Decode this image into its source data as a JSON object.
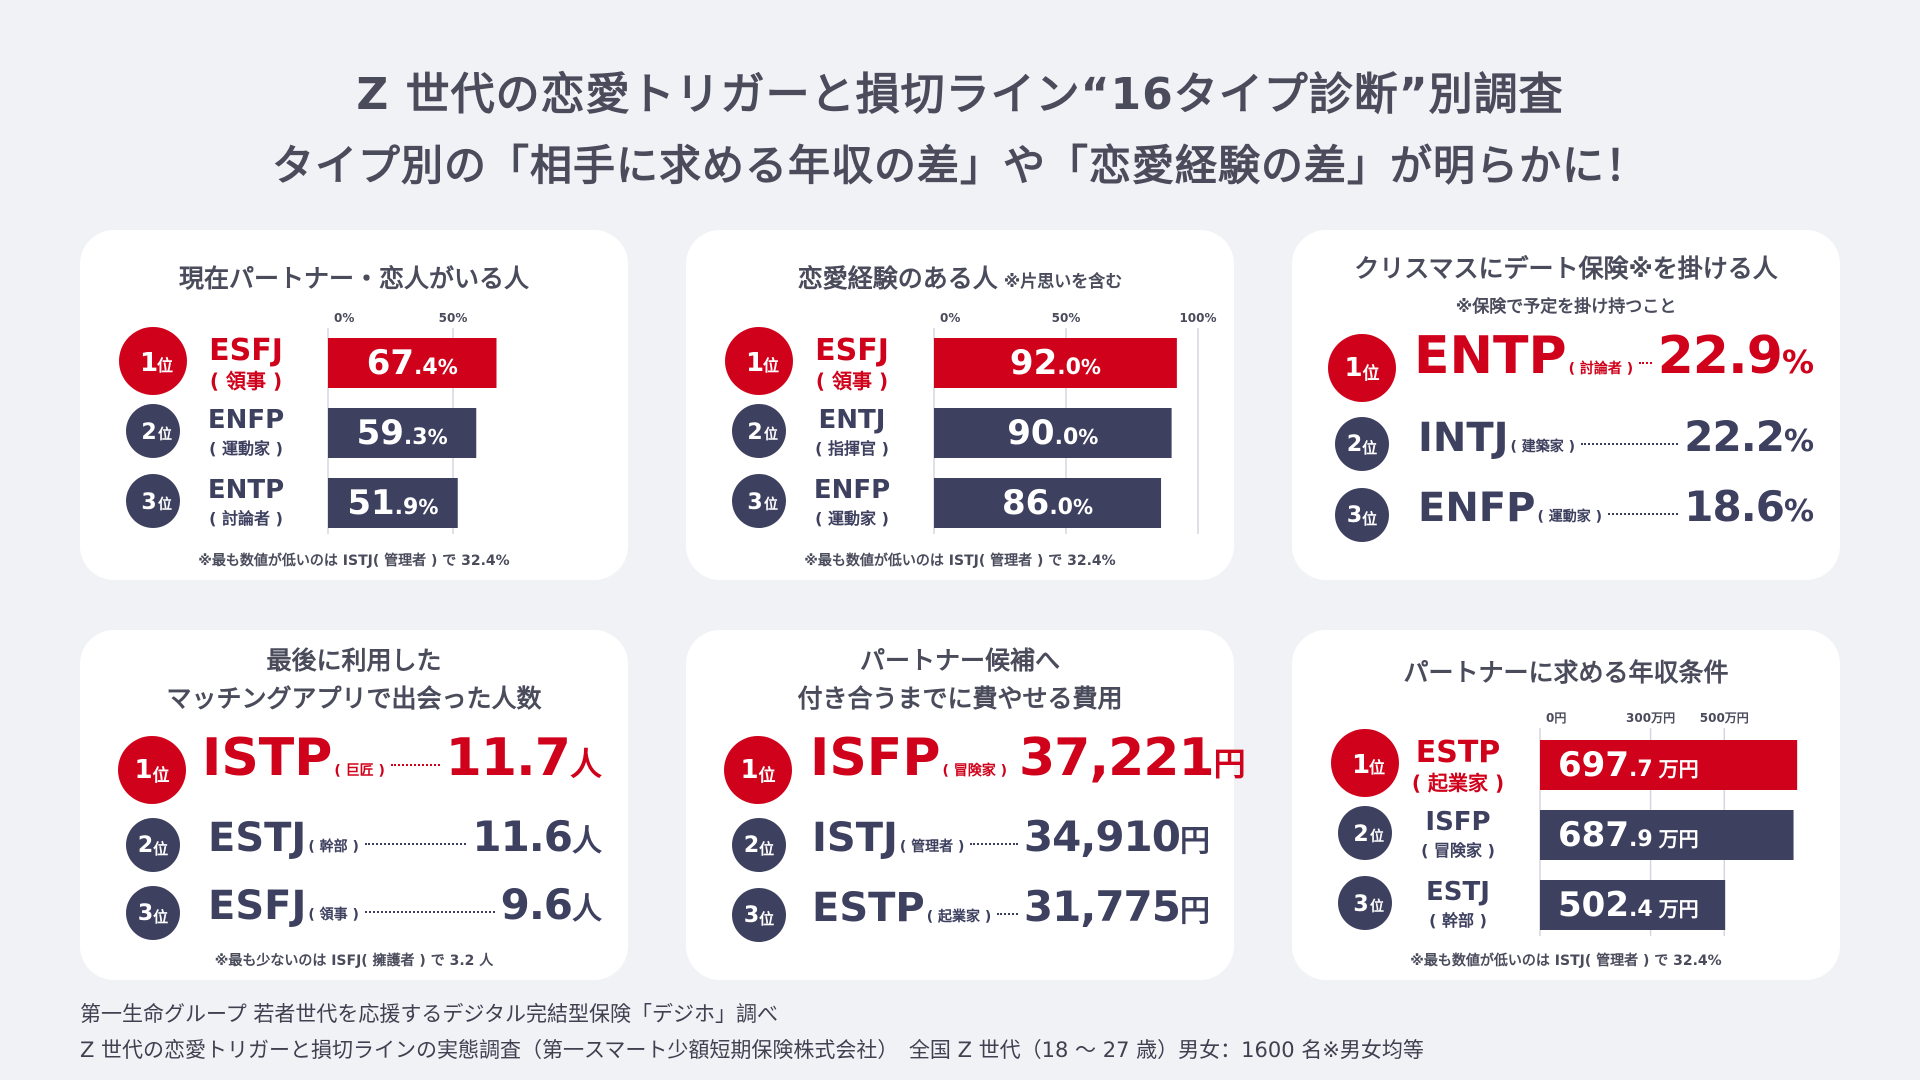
{
  "header": {
    "line1": "Z 世代の恋愛トリガーと損切ライン“16タイプ診断”別調査",
    "line2": "タイプ別の「相手に求める年収の差」や「恋愛経験の差」が明らかに！"
  },
  "rank_unit": "位",
  "colors": {
    "red": "#d0021b",
    "navy": "#3e4060",
    "bg": "#f1f2f6",
    "axis": "#d5d6de"
  },
  "cards": {
    "partner": {
      "title": "現在パートナー・恋人がいる人",
      "note": "※最も数値が低いのは ISTJ( 管理者 ) で 32.4%"
    },
    "experience": {
      "title": "恋愛経験のある人",
      "sub": "※片思いを含む",
      "note": "※最も数値が低いのは ISTJ( 管理者 ) で 32.4%"
    },
    "xmas": {
      "title": "クリスマスにデート保険※を掛ける人",
      "sub": "※保険で予定を掛け持つこと",
      "rows": [
        {
          "rank": "1",
          "code": "ENTP",
          "nick": "( 討論者 )",
          "val": "22.9",
          "unit": "%"
        },
        {
          "rank": "2",
          "code": "INTJ",
          "nick": "( 建築家 )",
          "val": "22.2",
          "unit": "%"
        },
        {
          "rank": "3",
          "code": "ENFP",
          "nick": "( 運動家 )",
          "val": "18.6",
          "unit": "%"
        }
      ]
    },
    "matching": {
      "title1": "最後に利用した",
      "title2": "マッチングアプリで出会った人数",
      "note": "※最も少ないのは ISFJ( 擁護者 ) で 3.2 人",
      "rows": [
        {
          "rank": "1",
          "code": "ISTP",
          "nick": "( 巨匠 )",
          "val": "11.7",
          "unit": "人"
        },
        {
          "rank": "2",
          "code": "ESTJ",
          "nick": "( 幹部 )",
          "val": "11.6",
          "unit": "人"
        },
        {
          "rank": "3",
          "code": "ESFJ",
          "nick": "( 領事 )",
          "val": "9.6",
          "unit": "人"
        }
      ]
    },
    "cost": {
      "title1": "パートナー候補へ",
      "title2": "付き合うまでに費やせる費用",
      "rows": [
        {
          "rank": "1",
          "code": "ISFP",
          "nick": "( 冒険家 )",
          "val": "37,221",
          "unit": "円"
        },
        {
          "rank": "2",
          "code": "ISTJ",
          "nick": "( 管理者 )",
          "val": "34,910",
          "unit": "円"
        },
        {
          "rank": "3",
          "code": "ESTP",
          "nick": "( 起業家 )",
          "val": "31,775",
          "unit": "円"
        }
      ]
    },
    "income": {
      "title": "パートナーに求める年収条件",
      "note": "※最も数値が低いのは ISTJ( 管理者 ) で 32.4%"
    }
  },
  "chart_data": [
    {
      "type": "bar",
      "title": "現在パートナー・恋人がいる人",
      "categories": [
        "ESFJ",
        "ENFP",
        "ENTP"
      ],
      "nicknames": [
        "( 領事 )",
        "( 運動家 )",
        "( 討論者 )"
      ],
      "values": [
        67.4,
        59.3,
        51.9
      ],
      "labels": [
        "67.4",
        "59.3",
        "51.9"
      ],
      "unit": "%",
      "ticks": [
        "0%",
        "50%"
      ],
      "tick_values": [
        0,
        50
      ],
      "xlim": [
        0,
        100
      ]
    },
    {
      "type": "bar",
      "title": "恋愛経験のある人",
      "categories": [
        "ESFJ",
        "ENTJ",
        "ENFP"
      ],
      "nicknames": [
        "( 領事 )",
        "( 指揮官 )",
        "( 運動家 )"
      ],
      "values": [
        92.0,
        90.0,
        86.0
      ],
      "labels": [
        "92.0",
        "90.0",
        "86.0"
      ],
      "unit": "%",
      "ticks": [
        "0%",
        "50%",
        "100%"
      ],
      "tick_values": [
        0,
        50,
        100
      ],
      "xlim": [
        0,
        100
      ]
    },
    {
      "type": "bar",
      "title": "パートナーに求める年収条件",
      "categories": [
        "ESTP",
        "ISFP",
        "ESTJ"
      ],
      "nicknames": [
        "( 起業家 )",
        "( 冒険家 )",
        "( 幹部 )"
      ],
      "values": [
        697.7,
        687.9,
        502.4
      ],
      "labels": [
        "697.7",
        "687.9",
        "502.4"
      ],
      "unit": "万円",
      "ticks": [
        "0円",
        "300万円",
        "500万円"
      ],
      "tick_values": [
        0,
        300,
        500
      ],
      "xlim": [
        0,
        700
      ]
    }
  ],
  "footer": {
    "line1": "第一生命グループ 若者世代を応援するデジタル完結型保険「デジホ」調べ",
    "line2": "Z 世代の恋愛トリガーと損切ラインの実態調査（第一スマート少額短期保険株式会社）　全国 Z 世代（18 ～ 27 歳）男女：1600 名※男女均等"
  }
}
